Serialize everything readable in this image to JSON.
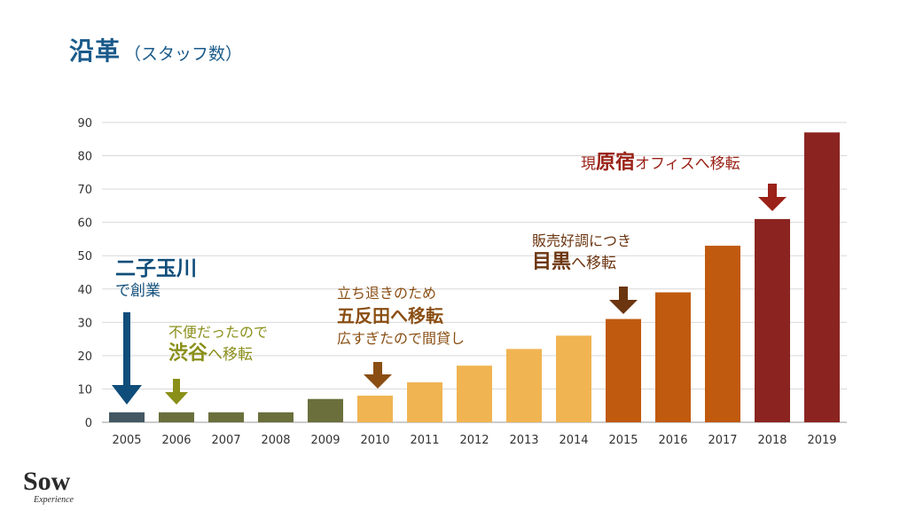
{
  "title": {
    "main": "沿革",
    "sub": "（スタッフ数）"
  },
  "colors": {
    "title": "#1a5a8a",
    "founding": "#0f4d7a",
    "shibuya": "#8a8f19",
    "gotanda": "#8a4e13",
    "meguro": "#6b3510",
    "harajuku": "#9a2218"
  },
  "annotations": {
    "founding": {
      "big": "二子玉川",
      "small": "で創業"
    },
    "shibuya": {
      "line1": "不便だったので",
      "big": "渋谷",
      "rest": "へ移転"
    },
    "gotanda": {
      "line1": "立ち退きのため",
      "big": "五反田へ移転",
      "line3": "広すぎたので間貸し"
    },
    "meguro": {
      "line1": "販売好調につき",
      "big": "目黒",
      "rest": "へ移転"
    },
    "harajuku": {
      "pre": "現",
      "big": "原宿",
      "rest": "オフィスへ移転"
    }
  },
  "logo": {
    "main": "Sow",
    "sub": "Experience"
  },
  "chart_data": {
    "type": "bar",
    "categories": [
      "2005",
      "2006",
      "2007",
      "2008",
      "2009",
      "2010",
      "2011",
      "2012",
      "2013",
      "2014",
      "2015",
      "2016",
      "2017",
      "2018",
      "2019"
    ],
    "values": [
      3,
      3,
      3,
      3,
      7,
      8,
      12,
      17,
      22,
      26,
      31,
      39,
      53,
      61,
      87
    ],
    "bar_colors": [
      "#435863",
      "#6a6f3c",
      "#6a6f3c",
      "#6a6f3c",
      "#6a6f3c",
      "#f0b452",
      "#f0b452",
      "#f0b452",
      "#f0b452",
      "#f0b452",
      "#c05a0e",
      "#c05a0e",
      "#c05a0e",
      "#8b2420",
      "#8b2420"
    ],
    "yticks": [
      "0",
      "10",
      "20",
      "30",
      "40",
      "50",
      "60",
      "70",
      "80",
      "90"
    ],
    "ylim": [
      0,
      90
    ],
    "grid": true,
    "title": "",
    "xlabel": "",
    "ylabel": ""
  }
}
